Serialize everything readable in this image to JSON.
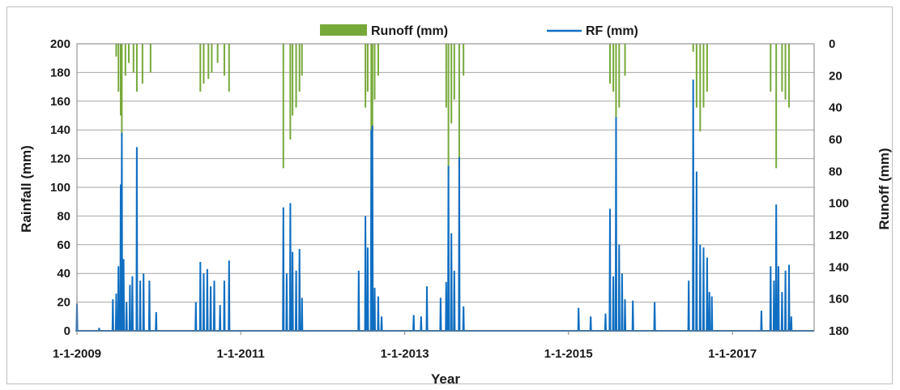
{
  "chart_data": {
    "type": "bar+line (dual axis)",
    "x_axis": {
      "label": "Year",
      "ticks": [
        "1-1-2009",
        "1-1-2011",
        "1-1-2013",
        "1-1-2015",
        "1-1-2017"
      ],
      "range": [
        "2009-01-01",
        "2017-12-31"
      ]
    },
    "y_left": {
      "label": "Rainfall (mm)",
      "range": [
        0,
        200
      ],
      "ticks": [
        0,
        20,
        40,
        60,
        80,
        100,
        120,
        140,
        160,
        180,
        200
      ]
    },
    "y_right": {
      "label": "Runoff (mm)",
      "range": [
        0,
        180
      ],
      "reversed": true,
      "ticks": [
        0,
        20,
        40,
        60,
        80,
        100,
        120,
        140,
        160,
        180
      ]
    },
    "legend": {
      "position": "top",
      "entries": [
        "Runoff (mm)",
        "RF (mm)"
      ]
    },
    "grid": true,
    "colors": {
      "runoff": "#77a93a",
      "rainfall": "#0f6ec1"
    },
    "series": [
      {
        "name": "RF (mm)",
        "kind": "line",
        "axis": "left",
        "points": [
          [
            "2009-01-01",
            19
          ],
          [
            "2009-01-10",
            0
          ],
          [
            "2009-04-10",
            2
          ],
          [
            "2009-06-10",
            22
          ],
          [
            "2009-06-25",
            26
          ],
          [
            "2009-07-05",
            45
          ],
          [
            "2009-07-15",
            102
          ],
          [
            "2009-07-20",
            138
          ],
          [
            "2009-07-28",
            50
          ],
          [
            "2009-08-10",
            20
          ],
          [
            "2009-08-25",
            32
          ],
          [
            "2009-09-05",
            38
          ],
          [
            "2009-09-25",
            128
          ],
          [
            "2009-10-10",
            35
          ],
          [
            "2009-10-25",
            40
          ],
          [
            "2009-11-20",
            35
          ],
          [
            "2009-12-20",
            13
          ],
          [
            "2010-06-15",
            20
          ],
          [
            "2010-07-05",
            48
          ],
          [
            "2010-07-20",
            40
          ],
          [
            "2010-08-05",
            43
          ],
          [
            "2010-08-20",
            31
          ],
          [
            "2010-09-05",
            35
          ],
          [
            "2010-10-01",
            18
          ],
          [
            "2010-10-20",
            35
          ],
          [
            "2010-11-10",
            49
          ],
          [
            "2011-07-10",
            86
          ],
          [
            "2011-07-25",
            40
          ],
          [
            "2011-08-10",
            89
          ],
          [
            "2011-08-20",
            55
          ],
          [
            "2011-09-05",
            42
          ],
          [
            "2011-09-20",
            57
          ],
          [
            "2011-10-01",
            23
          ],
          [
            "2012-06-10",
            42
          ],
          [
            "2012-07-10",
            80
          ],
          [
            "2012-07-20",
            58
          ],
          [
            "2012-08-05",
            140
          ],
          [
            "2012-08-10",
            143
          ],
          [
            "2012-08-20",
            30
          ],
          [
            "2012-09-05",
            24
          ],
          [
            "2012-09-20",
            10
          ],
          [
            "2013-02-10",
            11
          ],
          [
            "2013-03-15",
            10
          ],
          [
            "2013-04-10",
            31
          ],
          [
            "2013-06-10",
            23
          ],
          [
            "2013-07-05",
            34
          ],
          [
            "2013-07-15",
            115
          ],
          [
            "2013-07-28",
            68
          ],
          [
            "2013-08-10",
            42
          ],
          [
            "2013-09-01",
            121
          ],
          [
            "2013-09-20",
            17
          ],
          [
            "2015-02-15",
            16
          ],
          [
            "2015-04-10",
            10
          ],
          [
            "2015-06-15",
            12
          ],
          [
            "2015-07-05",
            85
          ],
          [
            "2015-07-20",
            38
          ],
          [
            "2015-08-01",
            149
          ],
          [
            "2015-08-15",
            60
          ],
          [
            "2015-08-28",
            40
          ],
          [
            "2015-09-10",
            22
          ],
          [
            "2015-10-15",
            21
          ],
          [
            "2016-01-20",
            20
          ],
          [
            "2016-06-20",
            35
          ],
          [
            "2016-07-10",
            175
          ],
          [
            "2016-07-25",
            111
          ],
          [
            "2016-08-10",
            60
          ],
          [
            "2016-08-25",
            58
          ],
          [
            "2016-09-10",
            51
          ],
          [
            "2016-09-20",
            27
          ],
          [
            "2016-10-01",
            24
          ],
          [
            "2017-05-10",
            14
          ],
          [
            "2017-06-20",
            45
          ],
          [
            "2017-07-05",
            35
          ],
          [
            "2017-07-15",
            88
          ],
          [
            "2017-07-25",
            45
          ],
          [
            "2017-08-10",
            27
          ],
          [
            "2017-08-25",
            42
          ],
          [
            "2017-09-10",
            46
          ],
          [
            "2017-09-20",
            10
          ]
        ]
      },
      {
        "name": "Runoff (mm)",
        "kind": "bar",
        "axis": "right",
        "points": [
          [
            "2009-06-25",
            8
          ],
          [
            "2009-07-05",
            30
          ],
          [
            "2009-07-15",
            45
          ],
          [
            "2009-07-20",
            58
          ],
          [
            "2009-08-05",
            20
          ],
          [
            "2009-08-20",
            12
          ],
          [
            "2009-09-10",
            18
          ],
          [
            "2009-09-25",
            30
          ],
          [
            "2009-10-20",
            25
          ],
          [
            "2009-11-25",
            18
          ],
          [
            "2010-07-05",
            30
          ],
          [
            "2010-07-20",
            25
          ],
          [
            "2010-08-10",
            22
          ],
          [
            "2010-08-25",
            18
          ],
          [
            "2010-09-20",
            12
          ],
          [
            "2010-10-20",
            20
          ],
          [
            "2010-11-10",
            30
          ],
          [
            "2011-07-10",
            78
          ],
          [
            "2011-08-10",
            60
          ],
          [
            "2011-08-20",
            45
          ],
          [
            "2011-09-05",
            40
          ],
          [
            "2011-09-20",
            30
          ],
          [
            "2011-10-01",
            20
          ],
          [
            "2012-07-10",
            40
          ],
          [
            "2012-07-20",
            30
          ],
          [
            "2012-08-05",
            60
          ],
          [
            "2012-08-10",
            55
          ],
          [
            "2012-08-20",
            35
          ],
          [
            "2012-09-05",
            20
          ],
          [
            "2013-07-05",
            40
          ],
          [
            "2013-07-15",
            82
          ],
          [
            "2013-07-28",
            50
          ],
          [
            "2013-08-10",
            35
          ],
          [
            "2013-09-01",
            78
          ],
          [
            "2013-09-20",
            20
          ],
          [
            "2015-07-05",
            25
          ],
          [
            "2015-07-20",
            30
          ],
          [
            "2015-08-01",
            65
          ],
          [
            "2015-08-15",
            40
          ],
          [
            "2015-09-10",
            20
          ],
          [
            "2016-07-10",
            5
          ],
          [
            "2016-07-25",
            40
          ],
          [
            "2016-08-10",
            55
          ],
          [
            "2016-08-25",
            40
          ],
          [
            "2016-09-10",
            30
          ],
          [
            "2017-06-20",
            30
          ],
          [
            "2017-07-15",
            78
          ],
          [
            "2017-08-10",
            30
          ],
          [
            "2017-08-25",
            35
          ],
          [
            "2017-09-10",
            40
          ]
        ]
      }
    ]
  }
}
